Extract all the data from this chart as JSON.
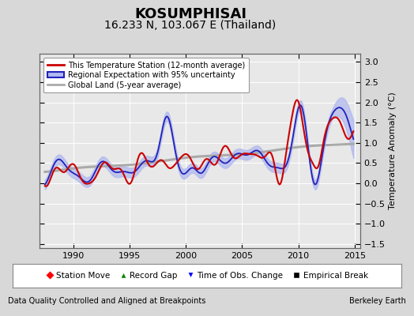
{
  "title": "KOSUMPHISAI",
  "subtitle": "16.233 N, 103.067 E (Thailand)",
  "ylabel": "Temperature Anomaly (°C)",
  "xlabel_left": "Data Quality Controlled and Aligned at Breakpoints",
  "xlabel_right": "Berkeley Earth",
  "xlim": [
    1987.0,
    2015.5
  ],
  "ylim": [
    -1.6,
    3.2
  ],
  "yticks": [
    -1.5,
    -1.0,
    -0.5,
    0.0,
    0.5,
    1.0,
    1.5,
    2.0,
    2.5,
    3.0
  ],
  "xticks": [
    1990,
    1995,
    2000,
    2005,
    2010,
    2015
  ],
  "bg_color": "#e8e8e8",
  "grid_color": "#ffffff",
  "red_color": "#cc0000",
  "blue_color": "#2222bb",
  "blue_fill_color": "#b0b8ee",
  "gray_color": "#aaaaaa",
  "title_fontsize": 13,
  "subtitle_fontsize": 10,
  "label_fontsize": 8,
  "fig_bg": "#d8d8d8"
}
